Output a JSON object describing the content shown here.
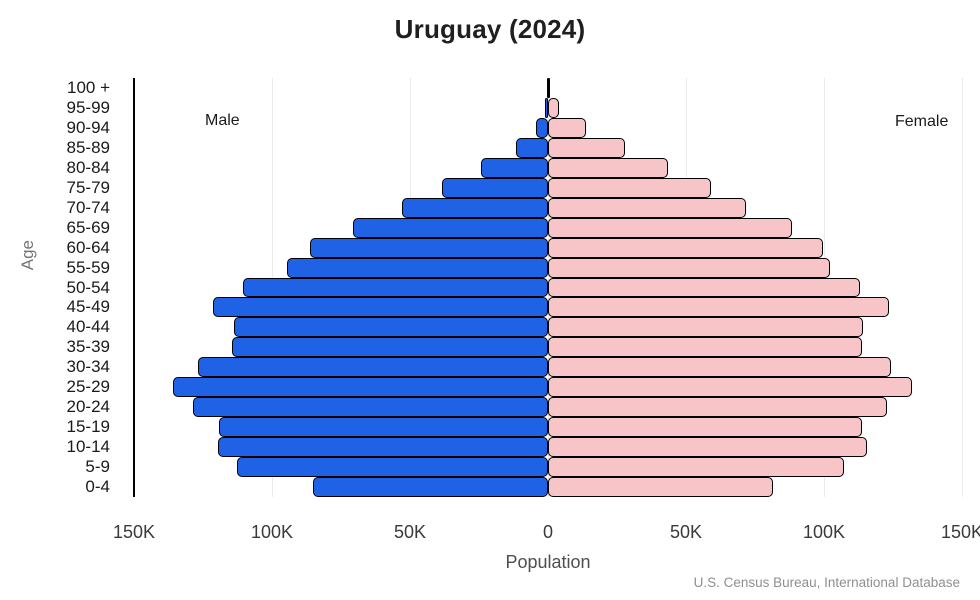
{
  "title": "Uruguay (2024)",
  "labels": {
    "male": "Male",
    "female": "Female",
    "age_axis": "Age",
    "x_axis": "Population",
    "source": "U.S. Census Bureau, International Database"
  },
  "colors": {
    "male_bar": "#1f62e5",
    "female_bar": "#f7c5c8",
    "bar_border": "#000000",
    "axis": "#000000",
    "gridline": "#ebebeb",
    "tick_text": "#3a3a3a",
    "muted_text": "#757575",
    "source_text": "#8f8f8f"
  },
  "chart_data": {
    "type": "bar",
    "subtype": "population-pyramid",
    "title": "Uruguay (2024)",
    "xlabel": "Population",
    "ylabel": "Age",
    "unit": "thousands of persons",
    "grid": true,
    "xlim_thousands": [
      -150,
      150
    ],
    "x_ticks": [
      {
        "label": "150K",
        "value": -150
      },
      {
        "label": "100K",
        "value": -100
      },
      {
        "label": "50K",
        "value": -50
      },
      {
        "label": "0",
        "value": 0
      },
      {
        "label": "50K",
        "value": 50
      },
      {
        "label": "100K",
        "value": 100
      },
      {
        "label": "150K",
        "value": 150
      }
    ],
    "age_groups": [
      "100 +",
      "95-99",
      "90-94",
      "85-89",
      "80-84",
      "75-79",
      "70-74",
      "65-69",
      "60-64",
      "55-59",
      "50-54",
      "45-49",
      "40-44",
      "35-39",
      "30-34",
      "25-29",
      "20-24",
      "15-19",
      "10-14",
      "5-9",
      "0-4"
    ],
    "series": [
      {
        "name": "Male",
        "side": "left",
        "values": [
          0.3,
          1.1,
          4.3,
          11.6,
          24.3,
          38.4,
          52.9,
          70.6,
          86.2,
          94.6,
          110.5,
          121.4,
          113.8,
          114.5,
          126.8,
          135.9,
          128.6,
          119.2,
          119.6,
          112.7,
          85.1
        ]
      },
      {
        "name": "Female",
        "side": "right",
        "values": [
          0.4,
          4.0,
          13.7,
          27.9,
          43.4,
          59.0,
          71.6,
          88.3,
          99.5,
          102.0,
          113.2,
          123.7,
          114.3,
          113.6,
          124.4,
          132.0,
          123.0,
          113.9,
          115.7,
          107.4,
          81.4
        ]
      }
    ]
  }
}
